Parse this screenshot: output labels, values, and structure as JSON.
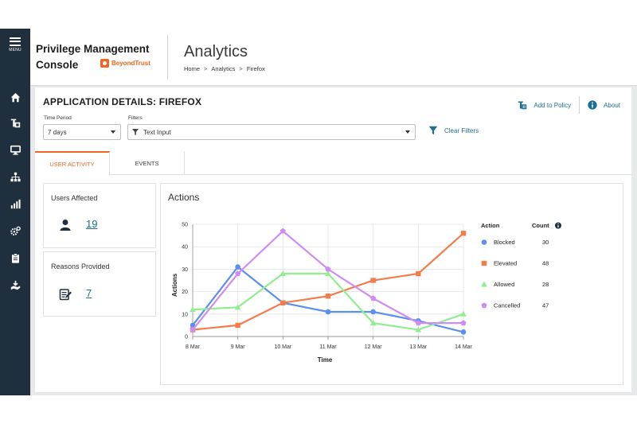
{
  "nav": {
    "menu_label": "MENU",
    "items": [
      "home-icon",
      "policy-icon",
      "monitor-icon",
      "hierarchy-icon",
      "analytics-icon",
      "settings-icon",
      "clipboard-icon",
      "deploy-icon"
    ]
  },
  "header": {
    "brand_line1": "Privilege Management",
    "brand_line2": "Console",
    "logo_text": "BeyondTrust",
    "page_title": "Analytics",
    "breadcrumb": [
      "Home",
      "Analytics",
      "Firefox"
    ],
    "breadcrumb_sep": ">"
  },
  "panel": {
    "app_title": "APPLICATION DETAILS: FIREFOX",
    "add_to_policy": "Add to Policy",
    "about": "About",
    "time_period_label": "Time Period",
    "time_period_value": "7 days",
    "filters_label": "Filters",
    "filters_value": "Text Input",
    "clear_filters": "Clear Filters"
  },
  "tabs": [
    {
      "label": "USER ACTIVITY",
      "active": true
    },
    {
      "label": "EVENTS",
      "active": false
    }
  ],
  "stats": {
    "users_affected_label": "Users Affected",
    "users_affected_value": "19",
    "reasons_provided_label": "Reasons Provided",
    "reasons_provided_value": "7"
  },
  "colors": {
    "accent": "#f26522",
    "link": "#1b6e8f",
    "nav_bg": "#1f2f3d"
  },
  "chart_data": {
    "type": "line",
    "title": "Actions",
    "xlabel": "Time",
    "ylabel": "Actions",
    "x": [
      "8 Mar",
      "9 Mar",
      "10 Mar",
      "11 Mar",
      "12 Mar",
      "13 Mar",
      "14 Mar"
    ],
    "ylim": [
      0,
      50
    ],
    "yticks": [
      0,
      10,
      20,
      30,
      40,
      50
    ],
    "grid": true,
    "legend_position": "right",
    "legend_header": {
      "action": "Action",
      "count": "Count"
    },
    "series": [
      {
        "name": "Blocked",
        "count": "30",
        "color": "#5b8ff0",
        "marker": "circle",
        "values": [
          5,
          31,
          15,
          11,
          11,
          7,
          2
        ]
      },
      {
        "name": "Elevated",
        "count": "48",
        "color": "#f47c4a",
        "marker": "square",
        "values": [
          3,
          5,
          15,
          18,
          25,
          28,
          46
        ]
      },
      {
        "name": "Allowed",
        "count": "28",
        "color": "#90ee90",
        "marker": "triangle",
        "values": [
          12,
          13,
          28,
          28,
          6,
          3,
          10
        ]
      },
      {
        "name": "Cancelled",
        "count": "47",
        "color": "#cf8cf5",
        "marker": "pentagon",
        "values": [
          3,
          28,
          47,
          30,
          17,
          6,
          6
        ]
      }
    ]
  }
}
